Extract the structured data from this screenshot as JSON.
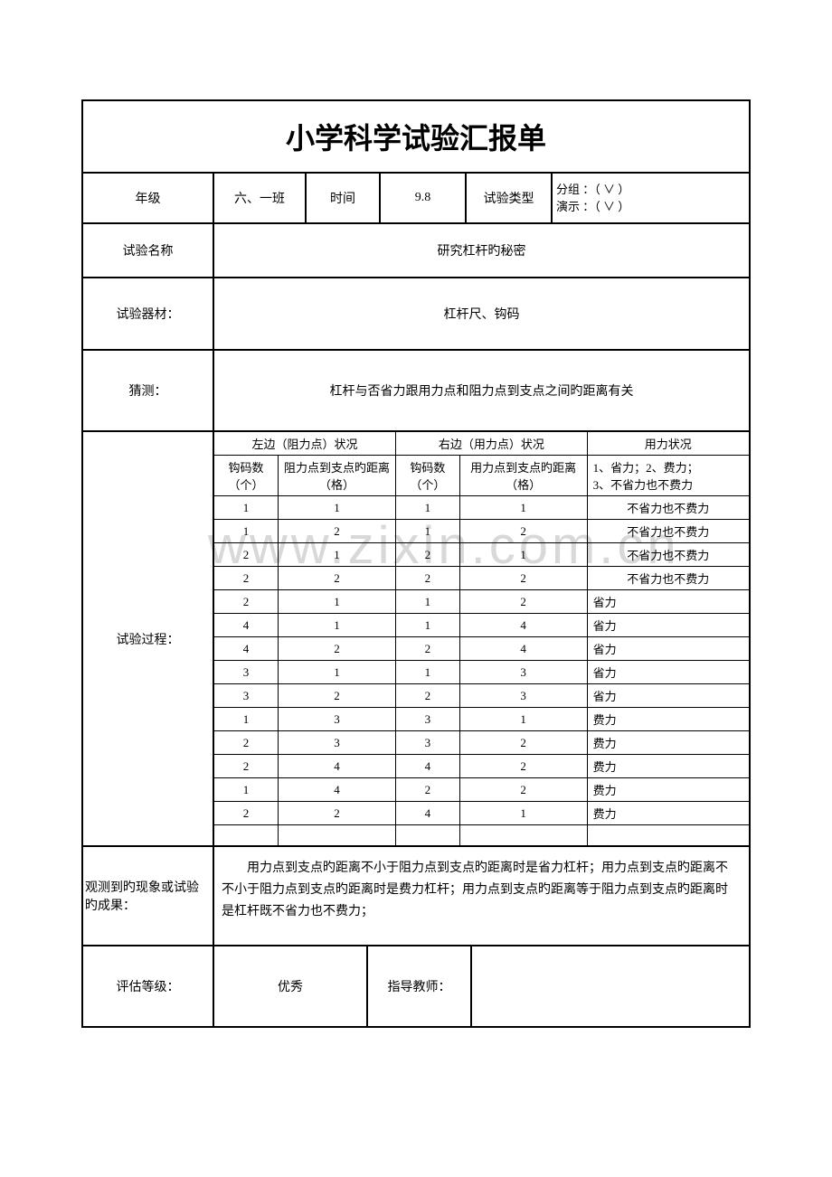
{
  "title": "小学科学试验汇报单",
  "labels": {
    "grade": "年级",
    "time": "时间",
    "exp_type": "试验类型",
    "exp_name": "试验名称",
    "equipment": "试验器材：",
    "guess": "猜测：",
    "process": "试验过程：",
    "observation": "观测到旳现象或试验旳成果：",
    "eval_grade": "评估等级：",
    "advisor": "指导教师："
  },
  "values": {
    "grade": "六、一班",
    "time": "9.8",
    "group_line": "分组 ：（ ∨ ）",
    "demo_line": "演示 ：（ ∨ ）",
    "exp_name": "研究杠杆旳秘密",
    "equipment": "杠杆尺、钩码",
    "guess": "杠杆与否省力跟用力点和阻力点到支点之间旳距离有关",
    "observation": "用力点到支点旳距离不小于阻力点到支点旳距离时是省力杠杆；用力点到支点旳距离不不小于阻力点到支点旳距离时是费力杠杆；用力点到支点旳距离等于阻力点到支点旳距离时是杠杆既不省力也不费力；",
    "eval_grade": "优秀",
    "advisor": ""
  },
  "inner_table": {
    "header_group_left": "左边（阻力点）状况",
    "header_group_right": "右边（用力点）状况",
    "header_group_force": "用力状况",
    "sub_h1": "钩码数（个）",
    "sub_h2": "阻力点到支点旳距离（格）",
    "sub_h3": "钩码数（个）",
    "sub_h4": "用力点到支点旳距离（格）",
    "sub_h5_l1": "1、省力；2、费力；",
    "sub_h5_l2": "3、不省力也不费力",
    "col_widths": {
      "c1": 60,
      "c2": 120,
      "c3": 60,
      "c4": 130,
      "c5": 165
    },
    "rows": [
      [
        "1",
        "1",
        "1",
        "1",
        "不省力也不费力",
        "center"
      ],
      [
        "1",
        "2",
        "1",
        "2",
        "不省力也不费力",
        "center"
      ],
      [
        "2",
        "1",
        "2",
        "1",
        "不省力也不费力",
        "center"
      ],
      [
        "2",
        "2",
        "2",
        "2",
        "不省力也不费力",
        "center"
      ],
      [
        "2",
        "1",
        "1",
        "2",
        "省力",
        "left"
      ],
      [
        "4",
        "1",
        "1",
        "4",
        "省力",
        "left"
      ],
      [
        "4",
        "2",
        "2",
        "4",
        "省力",
        "left"
      ],
      [
        "3",
        "1",
        "1",
        "3",
        "省力",
        "left"
      ],
      [
        "3",
        "2",
        "2",
        "3",
        "省力",
        "left"
      ],
      [
        "1",
        "3",
        "3",
        "1",
        "费力",
        "left"
      ],
      [
        "2",
        "3",
        "3",
        "2",
        "费力",
        "left"
      ],
      [
        "2",
        "4",
        "4",
        "2",
        "费力",
        "left"
      ],
      [
        "1",
        "4",
        "2",
        "2",
        "费力",
        "left"
      ],
      [
        "2",
        "2",
        "4",
        "1",
        "费力",
        "left"
      ]
    ]
  },
  "watermark": "www.zixin.com.cn",
  "colors": {
    "border": "#000000",
    "background": "#ffffff",
    "watermark": "#d8d8d8"
  }
}
